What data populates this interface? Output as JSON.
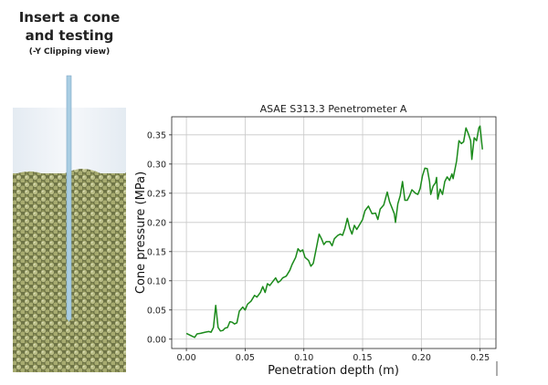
{
  "illustration": {
    "title_line1": "Insert a cone",
    "title_line2": "and testing",
    "subtitle": "(-Y Clipping view)"
  },
  "chart_data": {
    "type": "line",
    "title": "ASAE S313.3 Penetrometer A",
    "xlabel": "Penetration depth (m)",
    "ylabel": "Cone pressure (MPa)",
    "xlim": [
      -0.0125,
      0.2635
    ],
    "ylim": [
      -0.016,
      0.381
    ],
    "xticks": [
      "0.00",
      "0.05",
      "0.10",
      "0.15",
      "0.20",
      "0.25"
    ],
    "yticks": [
      "0.00",
      "0.05",
      "0.10",
      "0.15",
      "0.20",
      "0.25",
      "0.30",
      "0.35"
    ],
    "grid": true,
    "line_color": "#1a8a1a",
    "series": [
      {
        "name": "Cone pressure",
        "x": [
          0.0,
          0.004,
          0.007,
          0.009,
          0.012,
          0.016,
          0.019,
          0.021,
          0.023,
          0.025,
          0.027,
          0.029,
          0.031,
          0.033,
          0.035,
          0.037,
          0.039,
          0.041,
          0.043,
          0.045,
          0.048,
          0.05,
          0.052,
          0.055,
          0.058,
          0.06,
          0.063,
          0.065,
          0.067,
          0.069,
          0.071,
          0.074,
          0.076,
          0.078,
          0.08,
          0.082,
          0.085,
          0.088,
          0.09,
          0.093,
          0.095,
          0.097,
          0.099,
          0.101,
          0.104,
          0.106,
          0.108,
          0.11,
          0.113,
          0.115,
          0.117,
          0.119,
          0.122,
          0.124,
          0.126,
          0.129,
          0.131,
          0.133,
          0.135,
          0.137,
          0.139,
          0.141,
          0.143,
          0.145,
          0.148,
          0.15,
          0.152,
          0.155,
          0.158,
          0.161,
          0.163,
          0.165,
          0.168,
          0.171,
          0.173,
          0.175,
          0.177,
          0.178,
          0.18,
          0.182,
          0.184,
          0.186,
          0.188,
          0.19,
          0.192,
          0.195,
          0.197,
          0.199,
          0.201,
          0.203,
          0.205,
          0.207,
          0.208,
          0.21,
          0.212,
          0.213,
          0.214,
          0.216,
          0.218,
          0.22,
          0.222,
          0.224,
          0.226,
          0.227,
          0.23,
          0.232,
          0.234,
          0.236,
          0.238,
          0.24,
          0.242,
          0.243,
          0.245,
          0.247,
          0.249,
          0.25,
          0.252
        ],
        "y": [
          0.01,
          0.006,
          0.003,
          0.009,
          0.01,
          0.012,
          0.013,
          0.012,
          0.02,
          0.058,
          0.02,
          0.014,
          0.015,
          0.019,
          0.02,
          0.03,
          0.029,
          0.026,
          0.028,
          0.048,
          0.055,
          0.05,
          0.06,
          0.065,
          0.075,
          0.072,
          0.08,
          0.09,
          0.08,
          0.095,
          0.092,
          0.1,
          0.105,
          0.097,
          0.1,
          0.105,
          0.108,
          0.118,
          0.128,
          0.14,
          0.155,
          0.15,
          0.153,
          0.14,
          0.135,
          0.125,
          0.13,
          0.15,
          0.18,
          0.172,
          0.162,
          0.167,
          0.167,
          0.16,
          0.172,
          0.178,
          0.18,
          0.178,
          0.19,
          0.207,
          0.19,
          0.18,
          0.195,
          0.188,
          0.198,
          0.205,
          0.22,
          0.228,
          0.215,
          0.216,
          0.205,
          0.223,
          0.23,
          0.252,
          0.235,
          0.225,
          0.215,
          0.2,
          0.232,
          0.246,
          0.27,
          0.238,
          0.238,
          0.246,
          0.256,
          0.25,
          0.248,
          0.258,
          0.28,
          0.293,
          0.292,
          0.27,
          0.248,
          0.262,
          0.268,
          0.277,
          0.24,
          0.257,
          0.248,
          0.27,
          0.278,
          0.272,
          0.283,
          0.275,
          0.305,
          0.34,
          0.335,
          0.338,
          0.362,
          0.352,
          0.34,
          0.308,
          0.345,
          0.34,
          0.362,
          0.365,
          0.325
        ]
      }
    ]
  }
}
